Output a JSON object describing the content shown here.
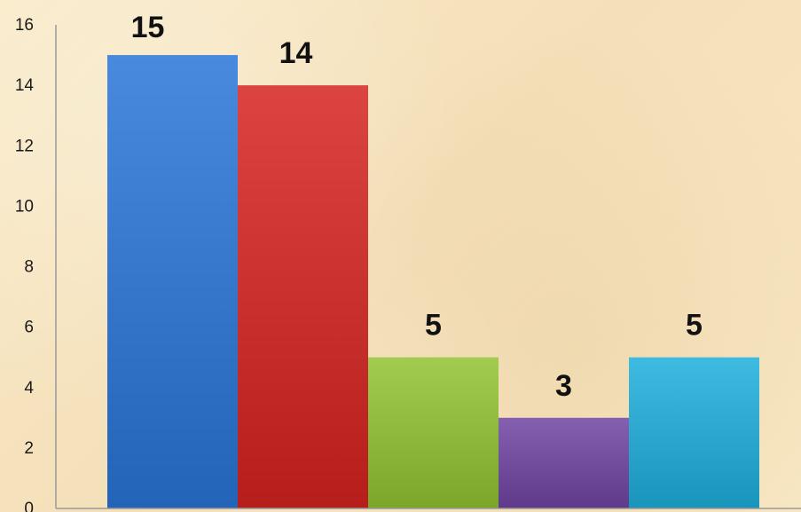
{
  "chart_data": {
    "type": "bar",
    "categories": [
      "",
      "",
      "",
      "",
      ""
    ],
    "values": [
      15,
      14,
      5,
      3,
      5
    ],
    "ylim": [
      0,
      16
    ],
    "yticks": [
      0,
      2,
      4,
      6,
      8,
      10,
      12,
      14,
      16
    ],
    "grid": false,
    "legend": "none"
  },
  "colors": {
    "bars": [
      "#3f7fd4",
      "#d23a38",
      "#97c246",
      "#7c56a6",
      "#35b1d8"
    ],
    "axis": "#9a9a9a"
  }
}
